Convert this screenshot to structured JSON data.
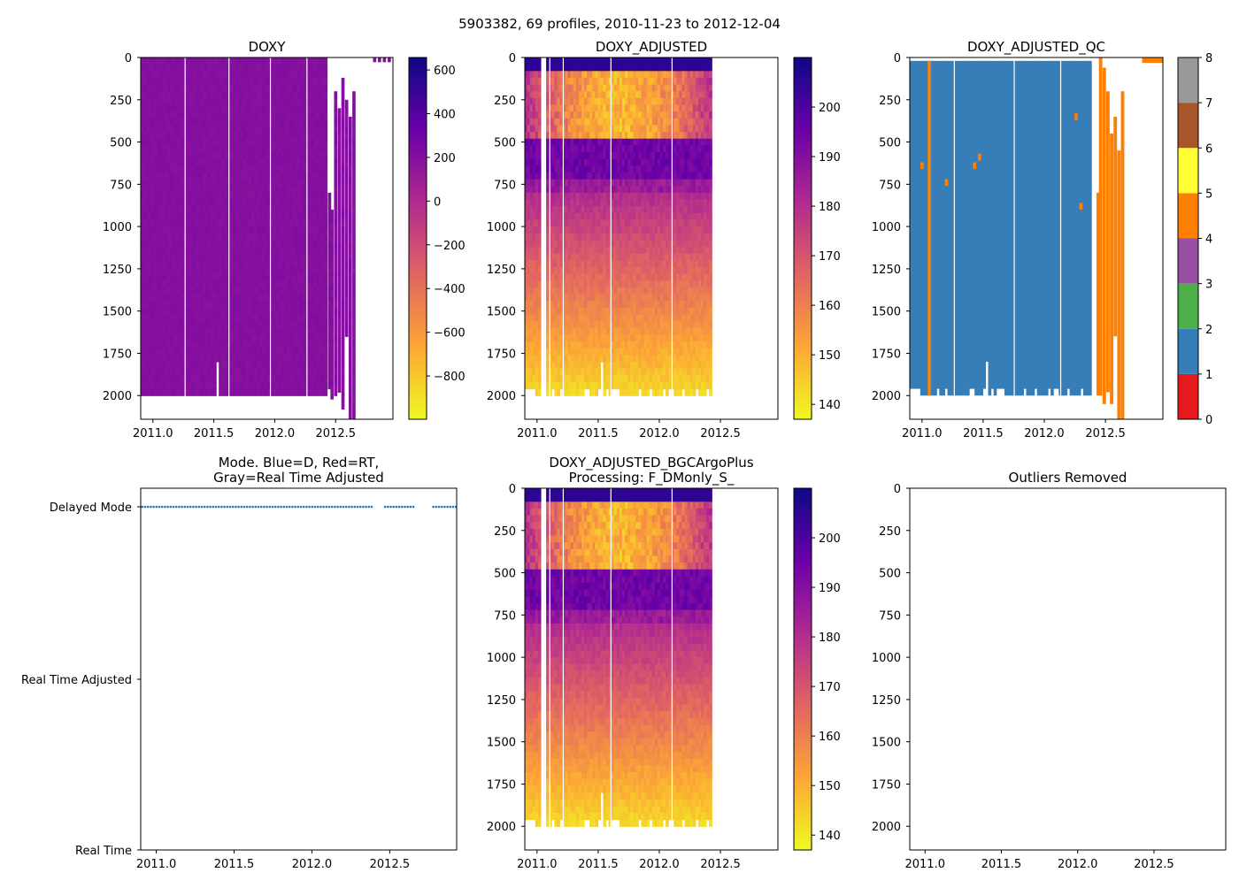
{
  "suptitle": "5903382, 69 profiles, 2010-11-23 to 2012-12-04",
  "chart_data": [
    {
      "id": "doxy",
      "type": "heatmap",
      "title": [
        "DOXY"
      ],
      "xlim": [
        2010.9,
        2012.97
      ],
      "ylim": [
        2140,
        0
      ],
      "xticks": [
        "2011.0",
        "2011.5",
        "2012.0",
        "2012.5"
      ],
      "yticks": [
        "0",
        "250",
        "500",
        "750",
        "1000",
        "1250",
        "1500",
        "1750",
        "2000"
      ],
      "colormap": "plasma_r",
      "clim": [
        -998,
        657
      ],
      "colorbar_ticks": [
        "600",
        "400",
        "200",
        "0",
        "−200",
        "−400",
        "−600",
        "−800"
      ],
      "typical_value": 200
    },
    {
      "id": "doxy_adjusted",
      "type": "heatmap",
      "title": [
        "DOXY_ADJUSTED"
      ],
      "xlim": [
        2010.9,
        2012.97
      ],
      "ylim": [
        2140,
        0
      ],
      "xticks": [
        "2011.0",
        "2011.5",
        "2012.0",
        "2012.5"
      ],
      "yticks": [
        "0",
        "250",
        "500",
        "750",
        "1000",
        "1250",
        "1500",
        "1750",
        "2000"
      ],
      "colormap": "plasma_r",
      "clim": [
        137,
        210
      ],
      "colorbar_ticks": [
        "200",
        "190",
        "180",
        "170",
        "160",
        "150",
        "140"
      ]
    },
    {
      "id": "doxy_adjusted_qc",
      "type": "heatmap",
      "title": [
        "DOXY_ADJUSTED_QC"
      ],
      "xlim": [
        2010.9,
        2012.97
      ],
      "ylim": [
        2140,
        0
      ],
      "xticks": [
        "2011.0",
        "2011.5",
        "2012.0",
        "2012.5"
      ],
      "yticks": [
        "0",
        "250",
        "500",
        "750",
        "1000",
        "1250",
        "1500",
        "1750",
        "2000"
      ],
      "clim": [
        0,
        8
      ],
      "colorbar_ticks": [
        "8",
        "7",
        "6",
        "5",
        "4",
        "3",
        "2",
        "1",
        "0"
      ],
      "qc_colors": [
        "#e41a1c",
        "#377eb8",
        "#4daf4a",
        "#984ea3",
        "#ff7f00",
        "#ffff33",
        "#a65628",
        "#f781bf",
        "#999999"
      ],
      "dominant_flag": 1,
      "late_flag": 4
    },
    {
      "id": "mode",
      "type": "scatter",
      "title": [
        "Mode. Blue=D, Red=RT,",
        "Gray=Real Time Adjusted"
      ],
      "xlim": [
        2010.9,
        2012.93
      ],
      "xticks": [
        "2011.0",
        "2011.5",
        "2012.0",
        "2012.5"
      ],
      "ylabels": [
        "Delayed Mode",
        "Real Time Adjusted",
        "Real Time"
      ],
      "series": [
        {
          "name": "Delayed Mode",
          "color": "#1f77b4",
          "date_ranges": [
            [
              2010.91,
              2012.4
            ],
            [
              2012.47,
              2012.66
            ],
            [
              2012.78,
              2012.93
            ]
          ]
        }
      ]
    },
    {
      "id": "doxy_adjusted_bgc",
      "type": "heatmap",
      "title": [
        "DOXY_ADJUSTED_BGCArgoPlus",
        "Processing: F_DMonly_S_"
      ],
      "xlim": [
        2010.9,
        2012.97
      ],
      "ylim": [
        2140,
        0
      ],
      "xticks": [
        "2011.0",
        "2011.5",
        "2012.0",
        "2012.5"
      ],
      "yticks": [
        "0",
        "250",
        "500",
        "750",
        "1000",
        "1250",
        "1500",
        "1750",
        "2000"
      ],
      "colormap": "plasma_r",
      "clim": [
        137,
        210
      ],
      "colorbar_ticks": [
        "200",
        "190",
        "180",
        "170",
        "160",
        "150",
        "140"
      ]
    },
    {
      "id": "outliers",
      "type": "scatter",
      "title": [
        "Outliers Removed"
      ],
      "xlim": [
        2010.9,
        2012.97
      ],
      "ylim": [
        2140,
        0
      ],
      "xticks": [
        "2011.0",
        "2011.5",
        "2012.0",
        "2012.5"
      ],
      "yticks": [
        "0",
        "250",
        "500",
        "750",
        "1000",
        "1250",
        "1500",
        "1750",
        "2000"
      ],
      "series": []
    }
  ]
}
